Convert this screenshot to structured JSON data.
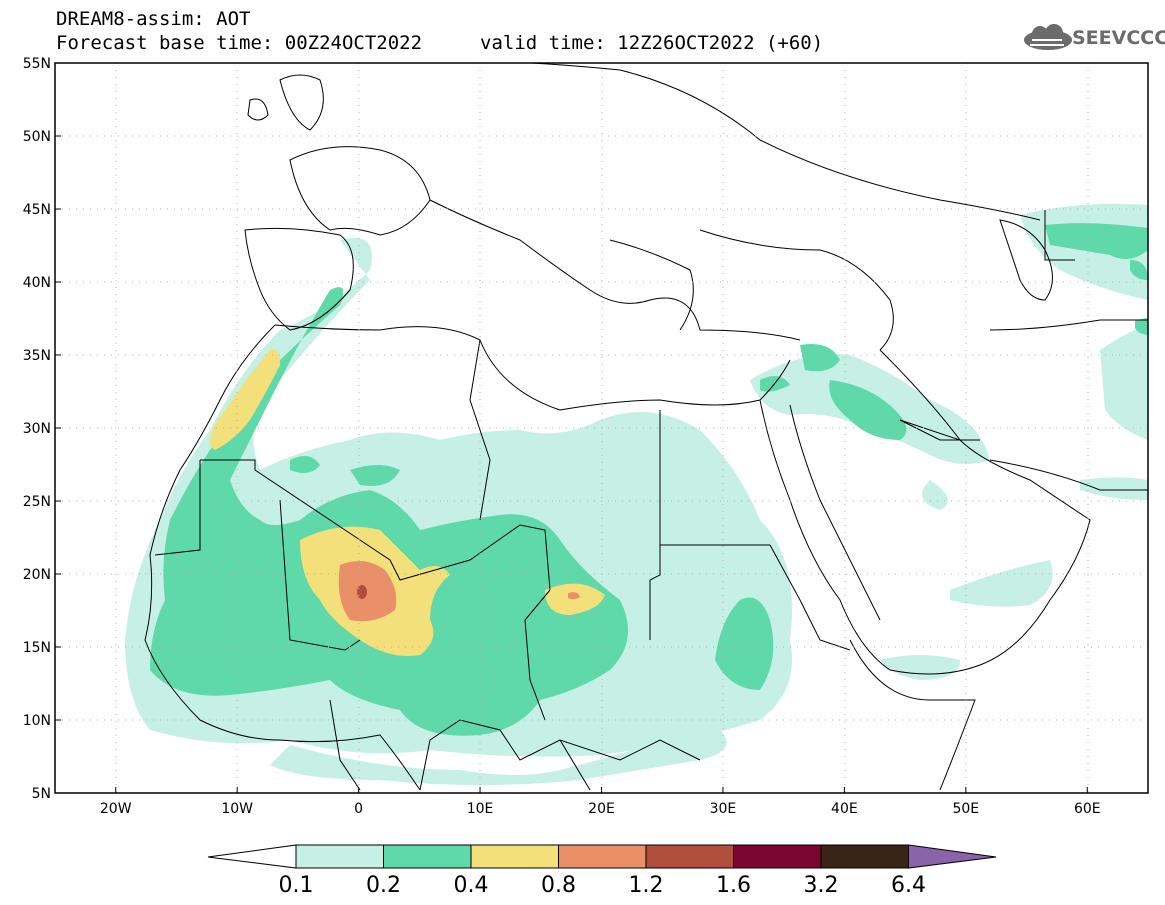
{
  "header": {
    "model_line": "DREAM8-assim: AOT",
    "base_time_line": "Forecast base time: 00Z24OCT2022",
    "valid_time_line": "valid time: 12Z26OCT2022 (+60)",
    "logo_text": "SEEVCCC"
  },
  "map": {
    "lon_range": [
      -25,
      65
    ],
    "lat_range": [
      5,
      55
    ],
    "lat_ticks": [
      "5N",
      "10N",
      "15N",
      "20N",
      "25N",
      "30N",
      "35N",
      "40N",
      "45N",
      "50N",
      "55N"
    ],
    "lon_ticks": [
      "20W",
      "10W",
      "0",
      "10E",
      "20E",
      "30E",
      "40E",
      "50E",
      "60E"
    ],
    "grid": "dotted"
  },
  "colorbar": {
    "levels": [
      "0.1",
      "0.2",
      "0.4",
      "0.8",
      "1.2",
      "1.6",
      "3.2",
      "6.4"
    ],
    "colors": [
      "#ffffff",
      "#c6f0e6",
      "#5fd9a9",
      "#f3e07a",
      "#ea9068",
      "#b24e3c",
      "#7c0630",
      "#3a2418",
      "#8a63a8"
    ]
  }
}
